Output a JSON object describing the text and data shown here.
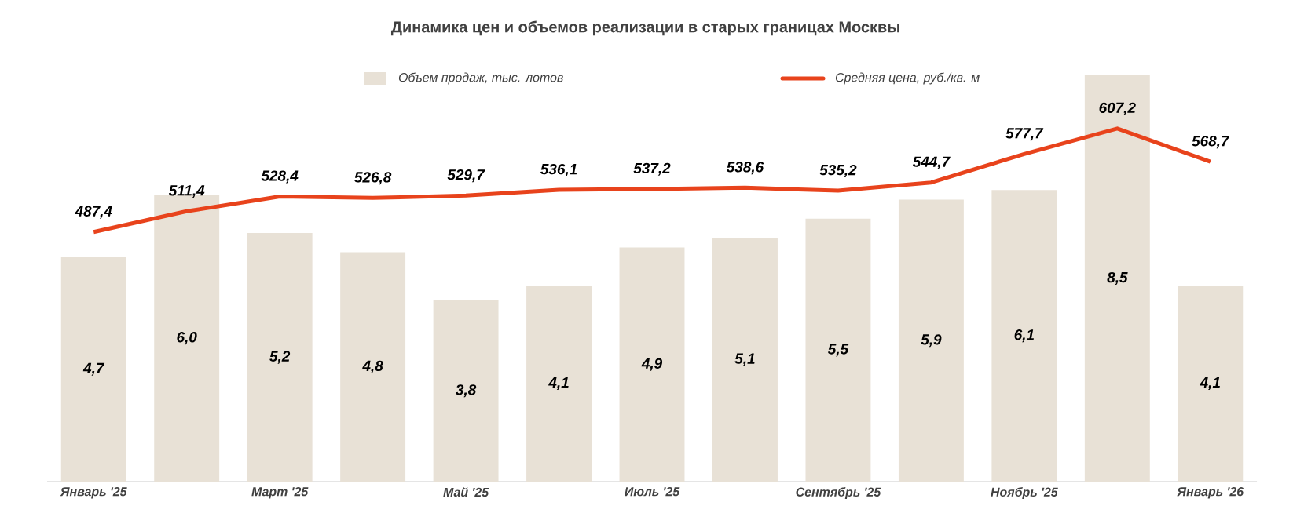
{
  "chart_data": {
    "type": "bar",
    "title": "Динамика цен и объемов реализации в старых границах Москвы",
    "categories": [
      "Январь '25",
      null,
      "Март '25",
      null,
      "Май '25",
      null,
      "Июль '25",
      null,
      "Сентябрь '25",
      null,
      "Ноябрь '25",
      null,
      "Январь '26"
    ],
    "legend": "top",
    "series": [
      {
        "name": "Объем продаж, тыс. лотов",
        "color": "#e8e1d6",
        "values": [
          4.7,
          6.0,
          5.2,
          4.8,
          3.8,
          4.1,
          4.9,
          5.1,
          5.5,
          5.9,
          6.1,
          8.5,
          4.1
        ],
        "value_labels": [
          "4,7",
          "6,0",
          "5,2",
          "4,8",
          "3,8",
          "4,1",
          "4,9",
          "5,1",
          "5,5",
          "5,9",
          "6,1",
          "8,5",
          "4,1"
        ]
      },
      {
        "name": "Средняя цена, руб./кв. м",
        "type": "line",
        "axis": "y2",
        "color": "#e8431c",
        "values": [
          487.4,
          511.4,
          528.4,
          526.8,
          529.7,
          536.1,
          537.2,
          538.6,
          535.2,
          544.7,
          577.7,
          607.2,
          568.7
        ],
        "value_labels": [
          "487,4",
          "511,4",
          "528,4",
          "526,8",
          "529,7",
          "536,1",
          "537,2",
          "538,6",
          "535,2",
          "544,7",
          "577,7",
          "607,2",
          "568,7"
        ]
      }
    ]
  }
}
